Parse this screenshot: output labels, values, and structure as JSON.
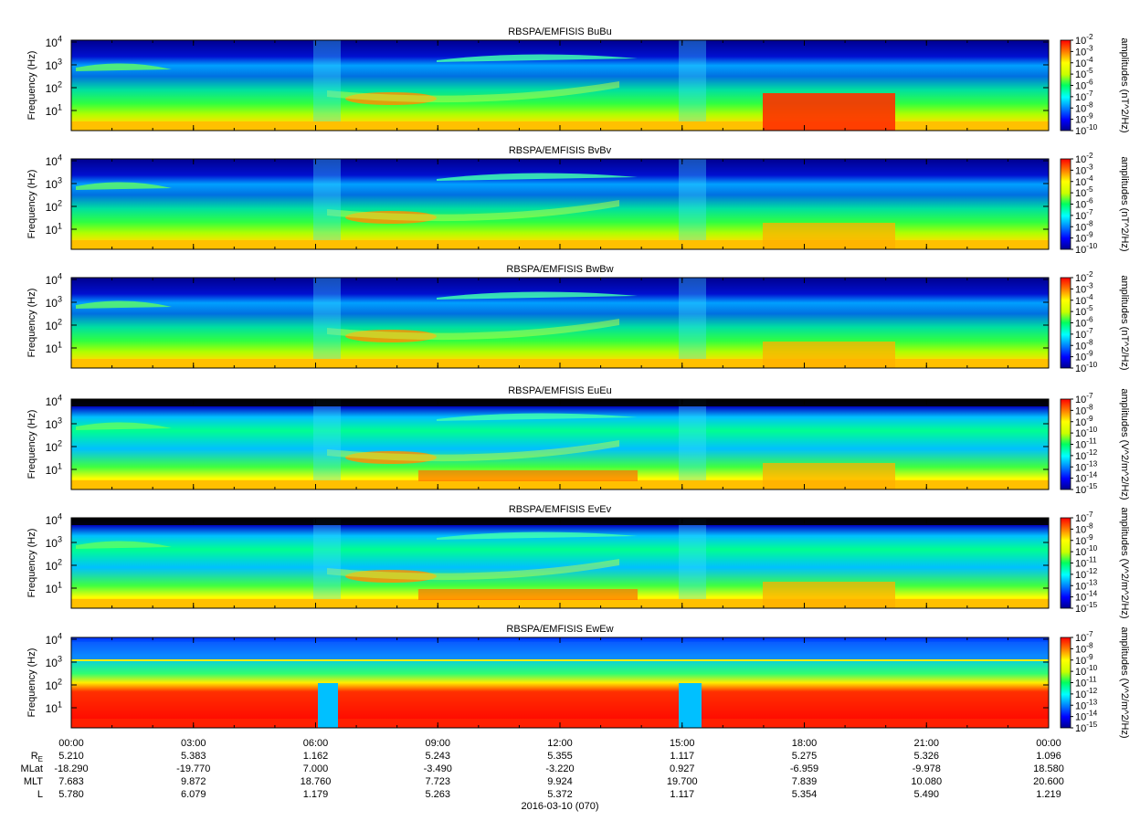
{
  "chart_data": {
    "type": "heatmap",
    "x_ticks": [
      "00:00",
      "03:00",
      "06:00",
      "09:00",
      "12:00",
      "15:00",
      "18:00",
      "21:00",
      "00:00"
    ],
    "x_label": "2016-03-10 (070)",
    "y_label": "Frequency (Hz)",
    "y_scale": "log",
    "y_tick_labels": [
      [
        "10",
        "1"
      ],
      [
        "10",
        "2"
      ],
      [
        "10",
        "3"
      ],
      [
        "10",
        "4"
      ]
    ],
    "panels": [
      {
        "title": "RBSPA/EMFISIS  BuBu",
        "cbar_label": "amplitudes (nT^2/Hz)",
        "cbar_ticks": [
          [
            "10",
            "-2"
          ],
          [
            "10",
            "-3"
          ],
          [
            "10",
            "-4"
          ],
          [
            "10",
            "-5"
          ],
          [
            "10",
            "-6"
          ],
          [
            "10",
            "-7"
          ],
          [
            "10",
            "-8"
          ],
          [
            "10",
            "-9"
          ],
          [
            "10",
            "-10"
          ]
        ]
      },
      {
        "title": "RBSPA/EMFISIS  BvBv",
        "cbar_label": "amplitudes (nT^2/Hz)",
        "cbar_ticks": [
          [
            "10",
            "-2"
          ],
          [
            "10",
            "-3"
          ],
          [
            "10",
            "-4"
          ],
          [
            "10",
            "-5"
          ],
          [
            "10",
            "-6"
          ],
          [
            "10",
            "-7"
          ],
          [
            "10",
            "-8"
          ],
          [
            "10",
            "-9"
          ],
          [
            "10",
            "-10"
          ]
        ]
      },
      {
        "title": "RBSPA/EMFISIS  BwBw",
        "cbar_label": "amplitudes (nT^2/Hz)",
        "cbar_ticks": [
          [
            "10",
            "-2"
          ],
          [
            "10",
            "-3"
          ],
          [
            "10",
            "-4"
          ],
          [
            "10",
            "-5"
          ],
          [
            "10",
            "-6"
          ],
          [
            "10",
            "-7"
          ],
          [
            "10",
            "-8"
          ],
          [
            "10",
            "-9"
          ],
          [
            "10",
            "-10"
          ]
        ]
      },
      {
        "title": "RBSPA/EMFISIS  EuEu",
        "cbar_label": "amplitudes (V^2/m^2/Hz)",
        "cbar_ticks": [
          [
            "10",
            "-7"
          ],
          [
            "10",
            "-8"
          ],
          [
            "10",
            "-9"
          ],
          [
            "10",
            "-10"
          ],
          [
            "10",
            "-11"
          ],
          [
            "10",
            "-12"
          ],
          [
            "10",
            "-13"
          ],
          [
            "10",
            "-14"
          ],
          [
            "10",
            "-15"
          ]
        ]
      },
      {
        "title": "RBSPA/EMFISIS  EvEv",
        "cbar_label": "amplitudes (V^2/m^2/Hz)",
        "cbar_ticks": [
          [
            "10",
            "-7"
          ],
          [
            "10",
            "-8"
          ],
          [
            "10",
            "-9"
          ],
          [
            "10",
            "-10"
          ],
          [
            "10",
            "-11"
          ],
          [
            "10",
            "-12"
          ],
          [
            "10",
            "-13"
          ],
          [
            "10",
            "-14"
          ],
          [
            "10",
            "-15"
          ]
        ]
      },
      {
        "title": "RBSPA/EMFISIS  EwEw",
        "cbar_label": "amplitudes (V^2/m^2/Hz)",
        "cbar_ticks": [
          [
            "10",
            "-7"
          ],
          [
            "10",
            "-8"
          ],
          [
            "10",
            "-9"
          ],
          [
            "10",
            "-10"
          ],
          [
            "10",
            "-11"
          ],
          [
            "10",
            "-12"
          ],
          [
            "10",
            "-13"
          ],
          [
            "10",
            "-14"
          ],
          [
            "10",
            "-15"
          ]
        ]
      }
    ],
    "ephemeris": {
      "labels": [
        [
          "R",
          "E"
        ],
        [
          "MLat",
          ""
        ],
        [
          "MLT",
          ""
        ],
        [
          "L",
          ""
        ]
      ],
      "rows": [
        [
          "5.210",
          "5.383",
          "1.162",
          "5.243",
          "5.355",
          "1.117",
          "5.275",
          "5.326",
          "1.096"
        ],
        [
          "-18.290",
          "-19.770",
          "7.000",
          "-3.490",
          "-3.220",
          "0.927",
          "-6.959",
          "-9.978",
          "18.580"
        ],
        [
          "7.683",
          "9.872",
          "18.760",
          "7.723",
          "9.924",
          "19.700",
          "7.839",
          "10.080",
          "20.600"
        ],
        [
          "5.780",
          "6.079",
          "1.179",
          "5.263",
          "5.372",
          "1.117",
          "5.354",
          "5.490",
          "1.219"
        ]
      ]
    }
  }
}
